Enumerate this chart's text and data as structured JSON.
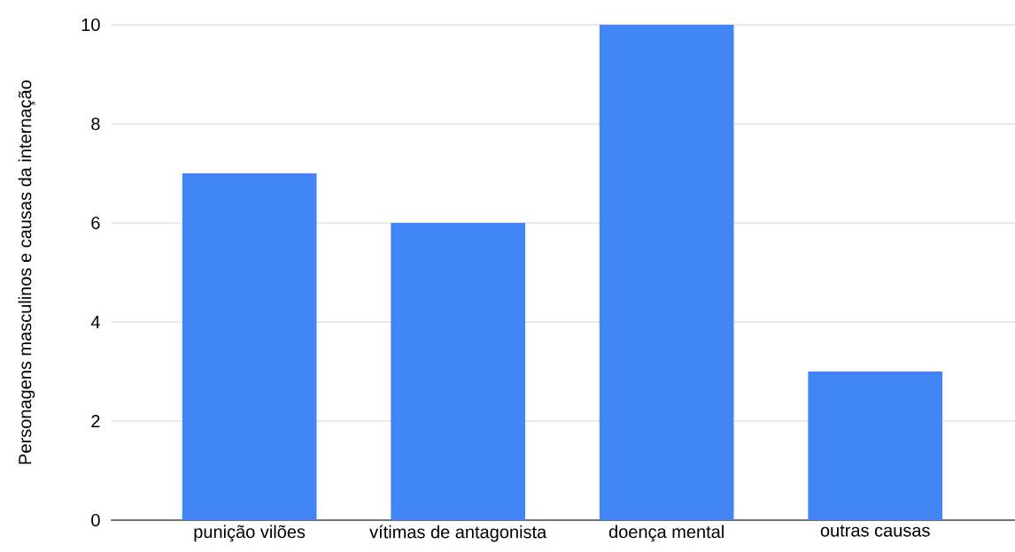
{
  "chart_data": {
    "type": "bar",
    "ylabel": "Personagens masculinos e causas da internação",
    "categories": [
      "punição vilões",
      "vítimas de antagonista",
      "doença mental",
      "outras causas"
    ],
    "values": [
      7,
      6,
      10,
      3
    ],
    "color": "#4285f4",
    "ylim": [
      0,
      10
    ],
    "yticks": [
      0,
      2,
      4,
      6,
      8,
      10
    ],
    "grid": "y"
  }
}
